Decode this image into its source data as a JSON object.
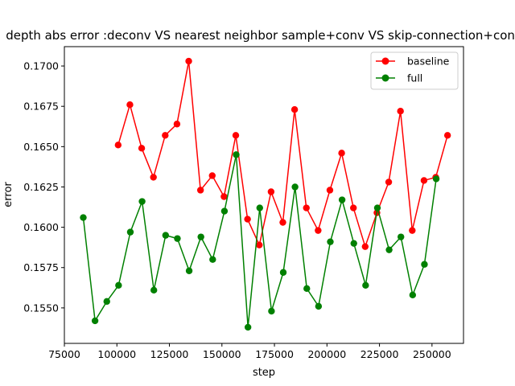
{
  "chart_data": {
    "type": "line",
    "title": "depth abs error :deconv VS nearest neighbor sample+conv VS skip-connection+conv",
    "xlabel": "step",
    "ylabel": "error",
    "xlim": [
      75000,
      265000
    ],
    "ylim": [
      0.1528,
      0.1712
    ],
    "xticks": [
      75000,
      100000,
      125000,
      150000,
      175000,
      200000,
      225000,
      250000
    ],
    "yticks": [
      0.155,
      0.1575,
      0.16,
      0.1625,
      0.165,
      0.1675,
      0.17
    ],
    "xtick_labels": [
      "75000",
      "100000",
      "125000",
      "150000",
      "175000",
      "200000",
      "225000",
      "250000"
    ],
    "ytick_labels": [
      "0.1550",
      "0.1575",
      "0.1600",
      "0.1625",
      "0.1650",
      "0.1675",
      "0.1700"
    ],
    "grid": false,
    "legend_position": "top-right",
    "series": [
      {
        "name": "baseline",
        "color": "#ff0000",
        "x": [
          100600,
          106200,
          111800,
          117400,
          123000,
          128600,
          134200,
          139800,
          145400,
          151000,
          156600,
          162200,
          167800,
          173400,
          179000,
          184600,
          190200,
          195800,
          201400,
          207000,
          212600,
          218200,
          223800,
          229400,
          235000,
          240600,
          246200,
          251800,
          257400
        ],
        "y": [
          0.1651,
          0.1676,
          0.1649,
          0.1631,
          0.1657,
          0.1664,
          0.1703,
          0.1623,
          0.1632,
          0.1619,
          0.1657,
          0.1605,
          0.1589,
          0.1622,
          0.1603,
          0.1673,
          0.1612,
          0.1598,
          0.1623,
          0.1646,
          0.1612,
          0.1588,
          0.1609,
          0.1628,
          0.1672,
          0.1598,
          0.1629,
          0.1631,
          0.1657
        ]
      },
      {
        "name": "full",
        "color": "#008000",
        "x": [
          84000,
          89600,
          95200,
          100800,
          106400,
          112000,
          117600,
          123200,
          128800,
          134400,
          140000,
          145600,
          151200,
          156800,
          162400,
          168000,
          173600,
          179200,
          184800,
          190400,
          196000,
          201600,
          207200,
          212800,
          218400,
          224000,
          229600,
          235200,
          240800,
          246400,
          252000
        ],
        "y": [
          0.1606,
          0.1542,
          0.1554,
          0.1564,
          0.1597,
          0.1616,
          0.1561,
          0.1595,
          0.1593,
          0.1573,
          0.1594,
          0.158,
          0.161,
          0.1645,
          0.1538,
          0.1612,
          0.1548,
          0.1572,
          0.1625,
          0.1562,
          0.1551,
          0.1591,
          0.1617,
          0.159,
          0.1564,
          0.1612,
          0.1586,
          0.1594,
          0.1558,
          0.1577,
          0.163
        ]
      }
    ]
  }
}
